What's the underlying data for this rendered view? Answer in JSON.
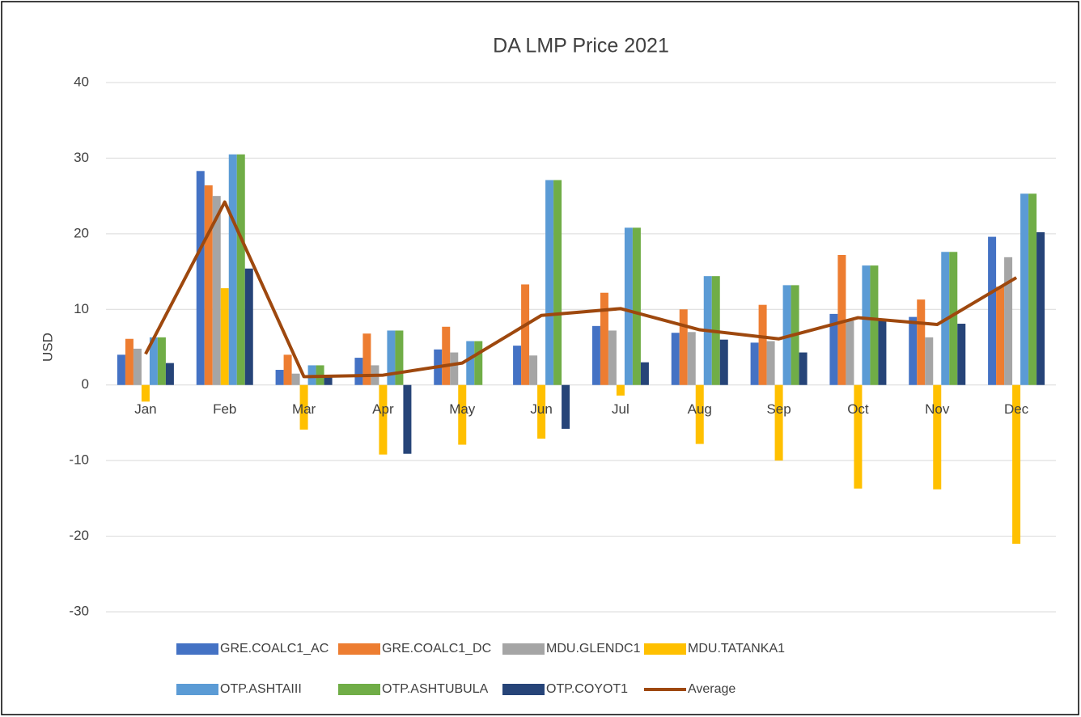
{
  "chart_data": {
    "type": "bar",
    "title": "DA LMP Price 2021",
    "y_label": "USD",
    "categories": [
      "Jan",
      "Feb",
      "Mar",
      "Apr",
      "May",
      "Jun",
      "Jul",
      "Aug",
      "Sep",
      "Oct",
      "Nov",
      "Dec"
    ],
    "series": [
      {
        "name": "GRE.COALC1_AC",
        "color": "#4472c4",
        "values": [
          4.0,
          28.3,
          2.0,
          3.6,
          4.7,
          5.2,
          7.8,
          6.9,
          5.6,
          9.4,
          9.0,
          19.6
        ]
      },
      {
        "name": "GRE.COALC1_DC",
        "color": "#ed7d31",
        "values": [
          6.1,
          26.4,
          4.0,
          6.8,
          7.7,
          13.3,
          12.2,
          10.0,
          10.6,
          17.2,
          11.3,
          13.0
        ]
      },
      {
        "name": "MDU.GLENDC1",
        "color": "#a5a5a5",
        "values": [
          4.8,
          25.0,
          1.5,
          2.6,
          4.3,
          3.9,
          7.2,
          7.0,
          5.8,
          8.5,
          6.3,
          16.9
        ]
      },
      {
        "name": "MDU.TATANKA1",
        "color": "#ffc000",
        "values": [
          -2.2,
          12.8,
          -5.9,
          -9.2,
          -7.9,
          -7.1,
          -1.4,
          -7.8,
          -10.0,
          -13.7,
          -13.8,
          -21.0
        ]
      },
      {
        "name": "OTP.ASHTAIII",
        "color": "#5b9bd5",
        "values": [
          6.3,
          30.5,
          2.6,
          7.2,
          5.8,
          27.1,
          20.8,
          14.4,
          13.2,
          15.8,
          17.6,
          25.3
        ]
      },
      {
        "name": "OTP.ASHTUBULA",
        "color": "#70ad47",
        "values": [
          6.3,
          30.5,
          2.6,
          7.2,
          5.8,
          27.1,
          20.8,
          14.4,
          13.2,
          15.8,
          17.6,
          25.3
        ]
      },
      {
        "name": "OTP.COYOT1",
        "color": "#264478",
        "values": [
          2.9,
          15.4,
          1.0,
          -9.1,
          0,
          -5.8,
          3.0,
          6.0,
          4.3,
          8.6,
          8.1,
          20.2
        ]
      },
      {
        "name": "Average",
        "color": "#9e480e",
        "type": "line",
        "values": [
          4.1,
          24.2,
          1.1,
          1.3,
          2.9,
          9.2,
          10.1,
          7.3,
          6.1,
          8.9,
          8.0,
          14.2
        ]
      }
    ],
    "ylim": [
      -30,
      40
    ],
    "yticks": [
      40,
      30,
      20,
      10,
      0,
      -10,
      -20,
      -30
    ],
    "grid": true,
    "legend": "bottom"
  }
}
